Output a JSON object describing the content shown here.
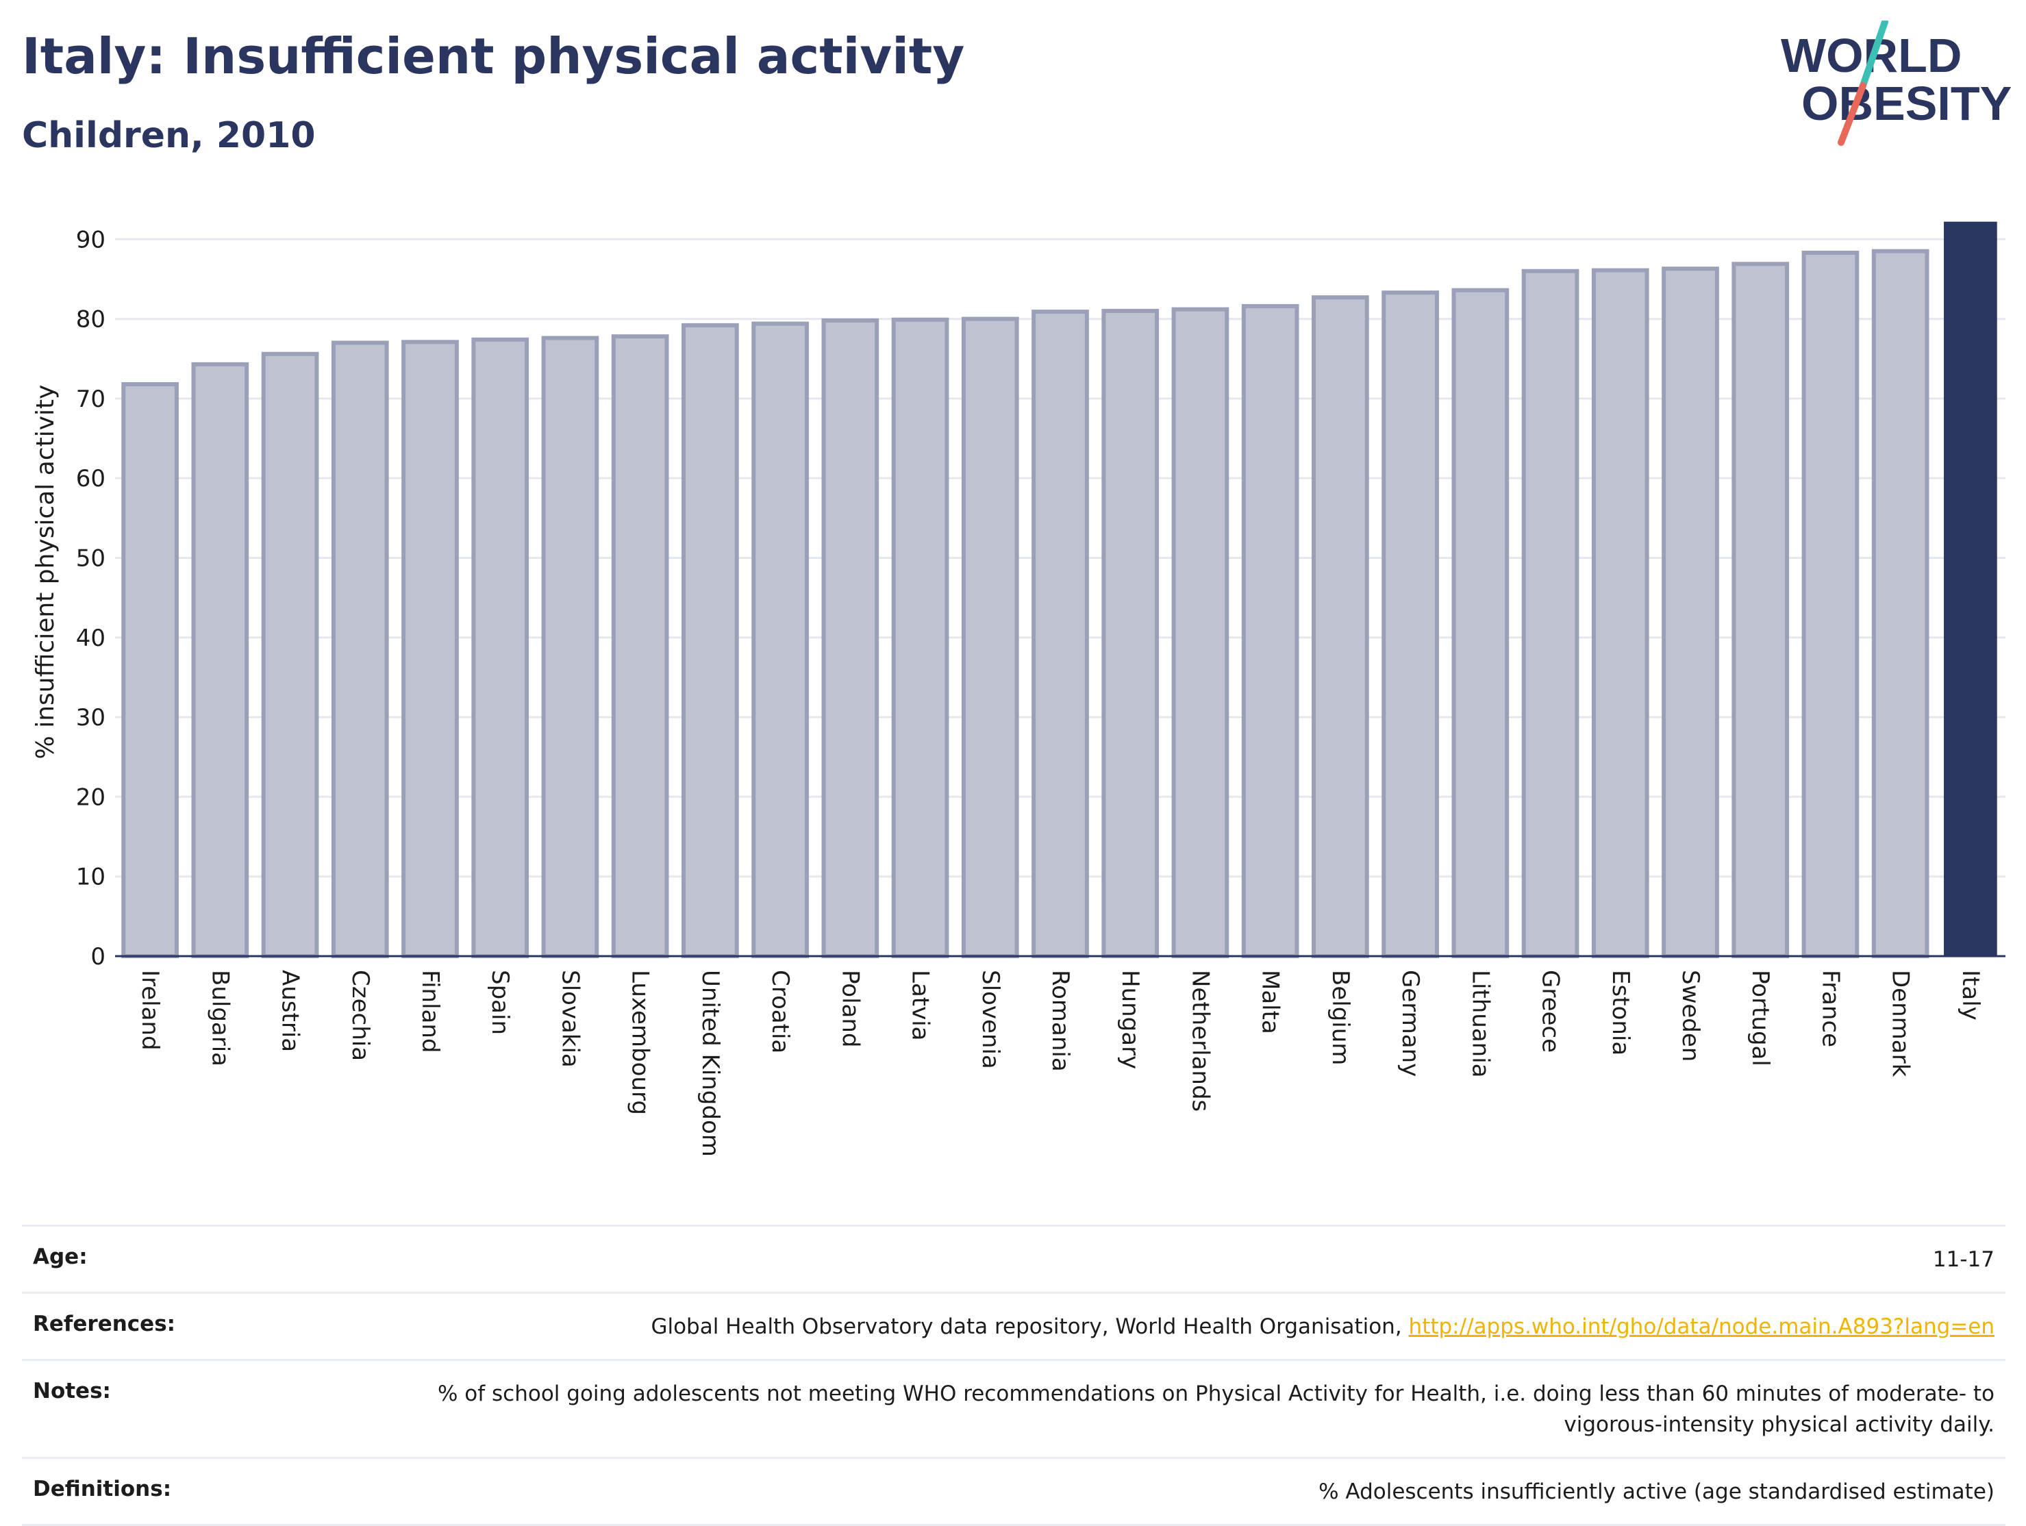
{
  "header": {
    "title": "Italy: Insufficient physical activity",
    "subtitle": "Children, 2010"
  },
  "logo": {
    "line1": "WORLD",
    "line2": "OBESITY",
    "colors": {
      "text": "#2a3560",
      "accent_teal": "#3cbfb4",
      "accent_red": "#e8685a"
    }
  },
  "colors": {
    "bar_fill": "#bfc3d1",
    "bar_stroke": "#9aa0b8",
    "highlight": "#2a3560",
    "grid": "#e6e8ef",
    "axis": "#2a3560"
  },
  "chart_data": {
    "type": "bar",
    "ylabel": "% insufficient physical activity",
    "ylim": [
      0,
      92
    ],
    "yticks": [
      0,
      10,
      20,
      30,
      40,
      50,
      60,
      70,
      80,
      90
    ],
    "grid": true,
    "highlight": "Italy",
    "categories": [
      "Ireland",
      "Bulgaria",
      "Austria",
      "Czechia",
      "Finland",
      "Spain",
      "Slovakia",
      "Luxembourg",
      "United Kingdom",
      "Croatia",
      "Poland",
      "Latvia",
      "Slovenia",
      "Romania",
      "Hungary",
      "Netherlands",
      "Malta",
      "Belgium",
      "Germany",
      "Lithuania",
      "Greece",
      "Estonia",
      "Sweden",
      "Portugal",
      "France",
      "Denmark",
      "Italy"
    ],
    "values": [
      71.8,
      74.3,
      75.6,
      77.0,
      77.1,
      77.4,
      77.6,
      77.8,
      79.2,
      79.4,
      79.8,
      79.9,
      80.0,
      80.9,
      81.0,
      81.2,
      81.6,
      82.7,
      83.3,
      83.6,
      86.0,
      86.1,
      86.3,
      86.9,
      88.3,
      88.5,
      92.2
    ]
  },
  "info_table": [
    {
      "label": "Age:",
      "value": "11-17"
    },
    {
      "label": "References:",
      "value": "Global Health Observatory data repository, World Health Organisation,",
      "link": "http://apps.who.int/gho/data/node.main.A893?lang=en"
    },
    {
      "label": "Notes:",
      "value": "% of school going adolescents not meeting WHO recommendations on Physical Activity for Health, i.e. doing less than 60 minutes of moderate- to vigorous-intensity physical activity daily."
    },
    {
      "label": "Definitions:",
      "value": "% Adolescents insufficiently active (age standardised estimate)"
    }
  ]
}
